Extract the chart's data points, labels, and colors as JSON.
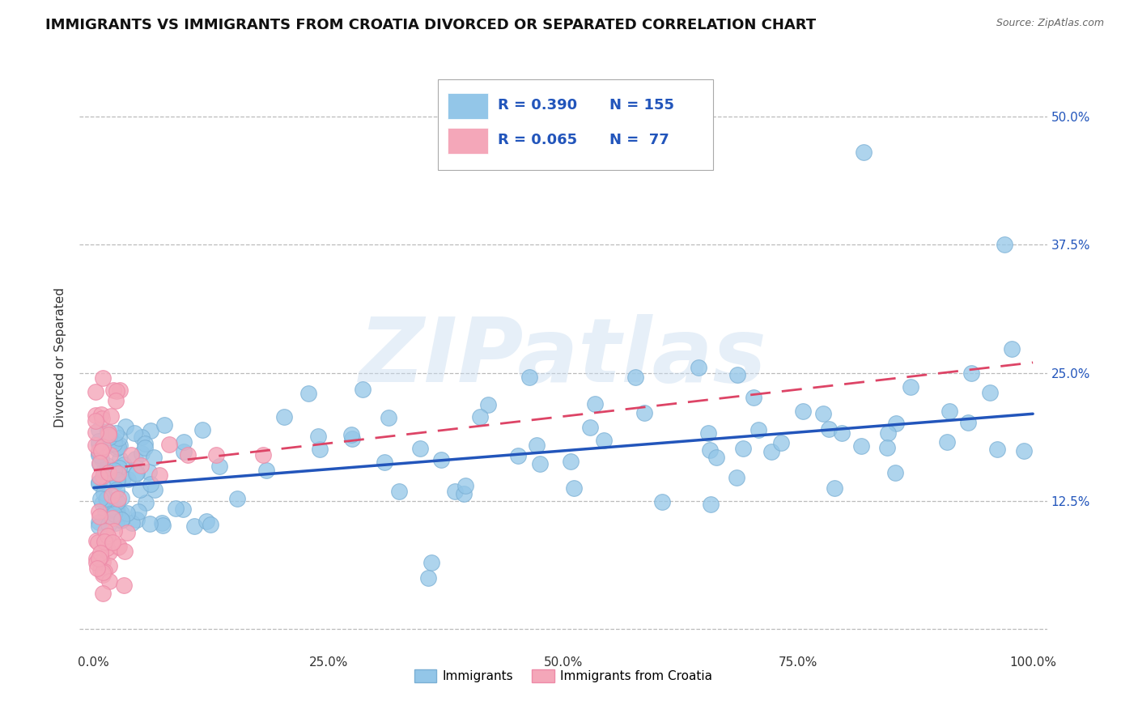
{
  "title": "IMMIGRANTS VS IMMIGRANTS FROM CROATIA DIVORCED OR SEPARATED CORRELATION CHART",
  "source": "Source: ZipAtlas.com",
  "ylabel": "Divorced or Separated",
  "legend_labels": [
    "Immigrants",
    "Immigrants from Croatia"
  ],
  "legend_r_values": [
    "R = 0.390",
    "R = 0.065"
  ],
  "legend_n_values": [
    "N = 155",
    "N =  77"
  ],
  "blue_color": "#93C6E8",
  "blue_edge_color": "#7AAFD4",
  "pink_color": "#F4A7B9",
  "pink_edge_color": "#EE8AA8",
  "blue_line_color": "#2255BB",
  "pink_line_color": "#DD4466",
  "r_value_color": "#2255BB",
  "xlim": [
    -0.015,
    1.015
  ],
  "ylim": [
    -0.02,
    0.55
  ],
  "xticks": [
    0.0,
    0.25,
    0.5,
    0.75,
    1.0
  ],
  "xticklabels": [
    "0.0%",
    "25.0%",
    "50.0%",
    "75.0%",
    "100.0%"
  ],
  "yticks": [
    0.0,
    0.125,
    0.25,
    0.375,
    0.5
  ],
  "right_yticklabels": [
    "",
    "12.5%",
    "25.0%",
    "37.5%",
    "50.0%"
  ],
  "watermark": "ZIPatlas",
  "background_color": "#FFFFFF",
  "grid_color": "#BBBBBB",
  "title_fontsize": 13,
  "axis_label_fontsize": 11,
  "tick_fontsize": 11,
  "blue_trend_x": [
    0.0,
    1.0
  ],
  "blue_trend_y": [
    0.138,
    0.21
  ],
  "pink_trend_x": [
    0.0,
    1.0
  ],
  "pink_trend_y": [
    0.155,
    0.26
  ]
}
